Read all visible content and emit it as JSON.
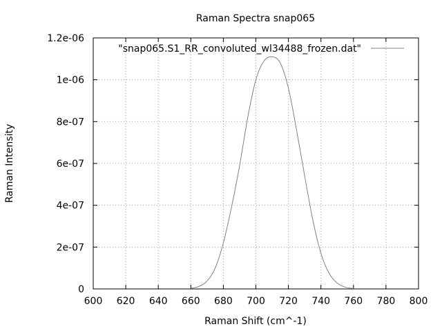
{
  "chart_data": {
    "type": "line",
    "title": "Raman Spectra snap065",
    "xlabel": "Raman Shift (cm^-1)",
    "ylabel": "Raman Intensity",
    "xlim": [
      600,
      800
    ],
    "ylim": [
      0,
      1.2e-06
    ],
    "x_ticks": [
      600,
      620,
      640,
      660,
      680,
      700,
      720,
      740,
      760,
      780,
      800
    ],
    "x_tick_labels": [
      "600",
      "620",
      "640",
      "660",
      "680",
      "700",
      "720",
      "740",
      "760",
      "780",
      "800"
    ],
    "y_ticks": [
      0,
      2e-07,
      4e-07,
      6e-07,
      8e-07,
      1e-06,
      1.2e-06
    ],
    "y_tick_labels": [
      "0",
      "2e-07",
      "4e-07",
      "6e-07",
      "8e-07",
      "1e-06",
      "1.2e-06"
    ],
    "grid": true,
    "legend_position": "top-right",
    "series": [
      {
        "name": "\"snap065.S1_RR_convoluted_wl34488_frozen.dat\"",
        "color": "#808080",
        "x": [
          660,
          665,
          670,
          675,
          680,
          685,
          690,
          695,
          700,
          705,
          710,
          715,
          720,
          725,
          730,
          735,
          740,
          745,
          750,
          755,
          760
        ],
        "y": [
          2.6e-09,
          1.2e-08,
          3.8e-08,
          1e-07,
          2.2e-07,
          3.9e-07,
          5.9e-07,
          8.2e-07,
          1e-06,
          1.09e-06,
          1.11e-06,
          1.08e-06,
          9.6e-07,
          7.6e-07,
          5.4e-07,
          3.3e-07,
          1.7e-07,
          7.5e-08,
          2.8e-08,
          8.5e-09,
          2e-09
        ]
      }
    ]
  }
}
